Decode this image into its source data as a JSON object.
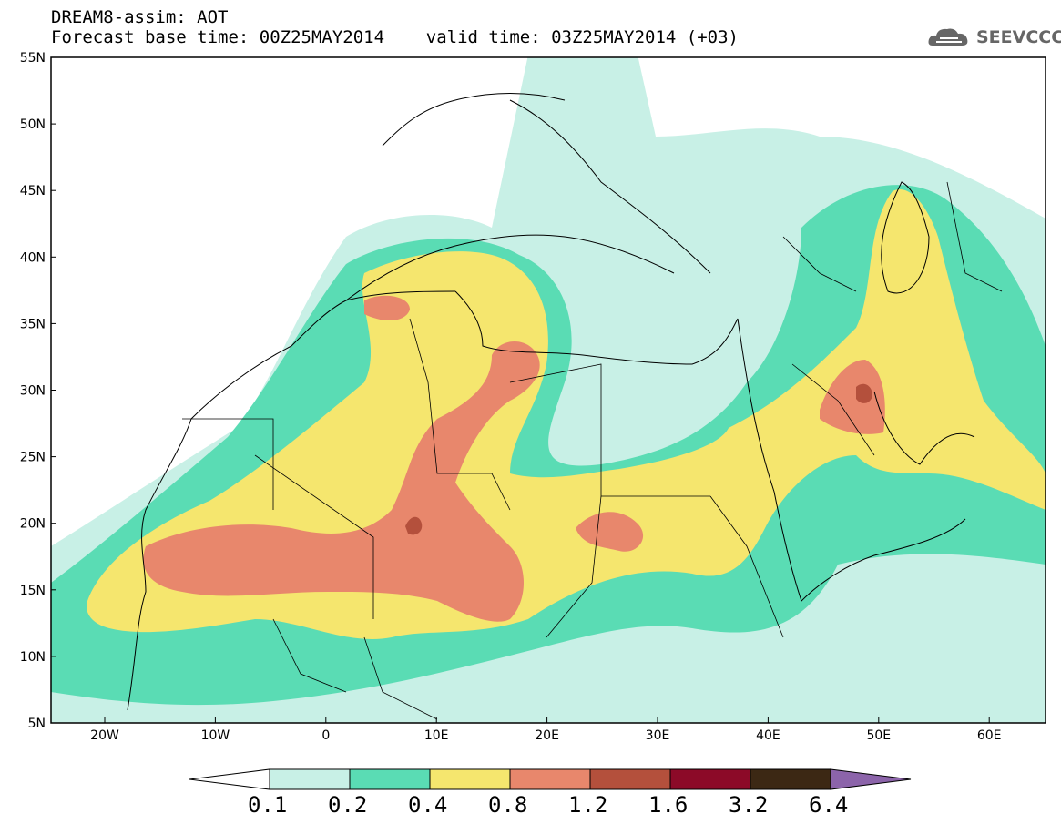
{
  "title_line1": "DREAM8-assim: AOT",
  "title_line2": "Forecast base time: 00Z25MAY2014    valid time: 03Z25MAY2014 (+03)",
  "logo_text": "SEEVCCC",
  "map": {
    "lat_labels": [
      "55N",
      "50N",
      "45N",
      "40N",
      "35N",
      "30N",
      "25N",
      "20N",
      "15N",
      "10N",
      "5N"
    ],
    "lon_labels": [
      "20W",
      "10W",
      "0",
      "10E",
      "20E",
      "30E",
      "40E",
      "50E",
      "60E"
    ]
  },
  "colorbar": {
    "labels": [
      "0.1",
      "0.2",
      "0.4",
      "0.8",
      "1.2",
      "1.6",
      "3.2",
      "6.4"
    ],
    "colors": [
      "#ffffff",
      "#c8f0e6",
      "#5adcb4",
      "#f5e66e",
      "#e8876c",
      "#b4503c",
      "#8c0a28",
      "#3c2814",
      "#8c64aa"
    ]
  }
}
